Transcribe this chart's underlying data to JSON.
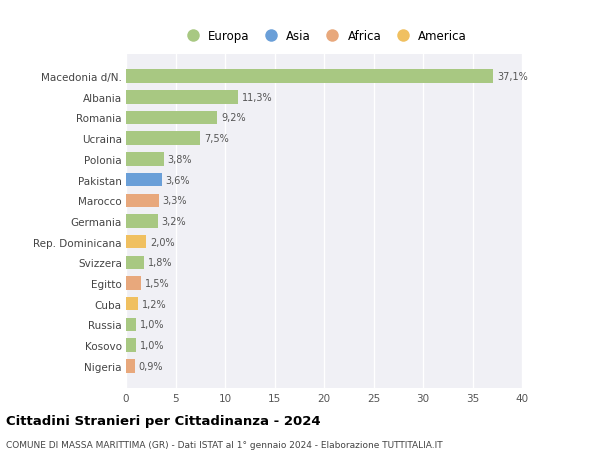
{
  "categories": [
    "Nigeria",
    "Kosovo",
    "Russia",
    "Cuba",
    "Egitto",
    "Svizzera",
    "Rep. Dominicana",
    "Germania",
    "Marocco",
    "Pakistan",
    "Polonia",
    "Ucraina",
    "Romania",
    "Albania",
    "Macedonia d/N."
  ],
  "values": [
    0.9,
    1.0,
    1.0,
    1.2,
    1.5,
    1.8,
    2.0,
    3.2,
    3.3,
    3.6,
    3.8,
    7.5,
    9.2,
    11.3,
    37.1
  ],
  "labels": [
    "0,9%",
    "1,0%",
    "1,0%",
    "1,2%",
    "1,5%",
    "1,8%",
    "2,0%",
    "3,2%",
    "3,3%",
    "3,6%",
    "3,8%",
    "7,5%",
    "9,2%",
    "11,3%",
    "37,1%"
  ],
  "colors": [
    "#e8a87c",
    "#a8c882",
    "#a8c882",
    "#f0c060",
    "#e8a87c",
    "#a8c882",
    "#f0c060",
    "#a8c882",
    "#e8a87c",
    "#6a9fd8",
    "#a8c882",
    "#a8c882",
    "#a8c882",
    "#a8c882",
    "#a8c882"
  ],
  "legend_labels": [
    "Europa",
    "Asia",
    "Africa",
    "America"
  ],
  "legend_colors": [
    "#a8c882",
    "#6a9fd8",
    "#e8a87c",
    "#f0c060"
  ],
  "title": "Cittadini Stranieri per Cittadinanza - 2024",
  "subtitle": "COMUNE DI MASSA MARITTIMA (GR) - Dati ISTAT al 1° gennaio 2024 - Elaborazione TUTTITALIA.IT",
  "xlim": [
    0,
    40
  ],
  "xticks": [
    0,
    5,
    10,
    15,
    20,
    25,
    30,
    35,
    40
  ],
  "bg_color": "#ffffff",
  "plot_bg_color": "#f0f0f5",
  "grid_color": "#ffffff",
  "bar_height": 0.65
}
